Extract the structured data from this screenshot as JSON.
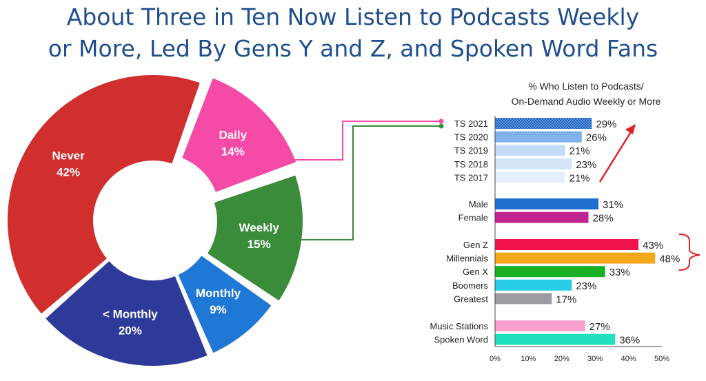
{
  "title_line1": "About Three in Ten Now Listen to Podcasts Weekly",
  "title_line2": "or More, Led By Gens Y and Z, and Spoken Word Fans",
  "chart_data": [
    {
      "type": "pie",
      "variant": "donut",
      "slices": [
        {
          "label": "Daily",
          "value": 14,
          "display": "14%",
          "color": "#f54aa5"
        },
        {
          "label": "Weekly",
          "value": 15,
          "display": "15%",
          "color": "#3a8b3a"
        },
        {
          "label": "Monthly",
          "value": 9,
          "display": "9%",
          "color": "#1f78d6"
        },
        {
          "label": "< Monthly",
          "value": 20,
          "display": "20%",
          "color": "#2e3a99"
        },
        {
          "label": "Never",
          "value": 42,
          "display": "42%",
          "color": "#d12e2e"
        }
      ]
    },
    {
      "type": "bar",
      "orientation": "horizontal",
      "title_line1": "% Who Listen to Podcasts/",
      "title_line2": "On-Demand Audio Weekly or More",
      "xlim": [
        0,
        50
      ],
      "ticks": [
        "0%",
        "10%",
        "20%",
        "30%",
        "40%",
        "50%"
      ],
      "groups": [
        {
          "bars": [
            {
              "label": "TS 2021",
              "value": 29,
              "display": "29%",
              "color": "#2a6fc9",
              "pattern": true
            },
            {
              "label": "TS 2020",
              "value": 26,
              "display": "26%",
              "color": "#7fb2ea"
            },
            {
              "label": "TS 2019",
              "value": 21,
              "display": "21%",
              "color": "#c4dcf5"
            },
            {
              "label": "TS 2018",
              "value": 23,
              "display": "23%",
              "color": "#d3e4f7"
            },
            {
              "label": "TS 2017",
              "value": 21,
              "display": "21%",
              "color": "#e3eefa"
            }
          ]
        },
        {
          "bars": [
            {
              "label": "Male",
              "value": 31,
              "display": "31%",
              "color": "#1f6fcf"
            },
            {
              "label": "Female",
              "value": 28,
              "display": "28%",
              "color": "#c2258f"
            }
          ]
        },
        {
          "bars": [
            {
              "label": "Gen Z",
              "value": 43,
              "display": "43%",
              "color": "#f0134b"
            },
            {
              "label": "Millennials",
              "value": 48,
              "display": "48%",
              "color": "#f3a81a"
            },
            {
              "label": "Gen X",
              "value": 33,
              "display": "33%",
              "color": "#19b023"
            },
            {
              "label": "Boomers",
              "value": 23,
              "display": "23%",
              "color": "#27cde6"
            },
            {
              "label": "Greatest",
              "value": 17,
              "display": "17%",
              "color": "#9e9aa2"
            }
          ]
        },
        {
          "bars": [
            {
              "label": "Music Stations",
              "value": 27,
              "display": "27%",
              "color": "#f79fcc"
            },
            {
              "label": "Spoken Word",
              "value": 36,
              "display": "36%",
              "color": "#21e0bd"
            }
          ]
        }
      ],
      "annotations": [
        "red arrow pointing up beside TS 2017–TS 2021",
        "red brace beside Gen Z and Millennials"
      ]
    }
  ]
}
